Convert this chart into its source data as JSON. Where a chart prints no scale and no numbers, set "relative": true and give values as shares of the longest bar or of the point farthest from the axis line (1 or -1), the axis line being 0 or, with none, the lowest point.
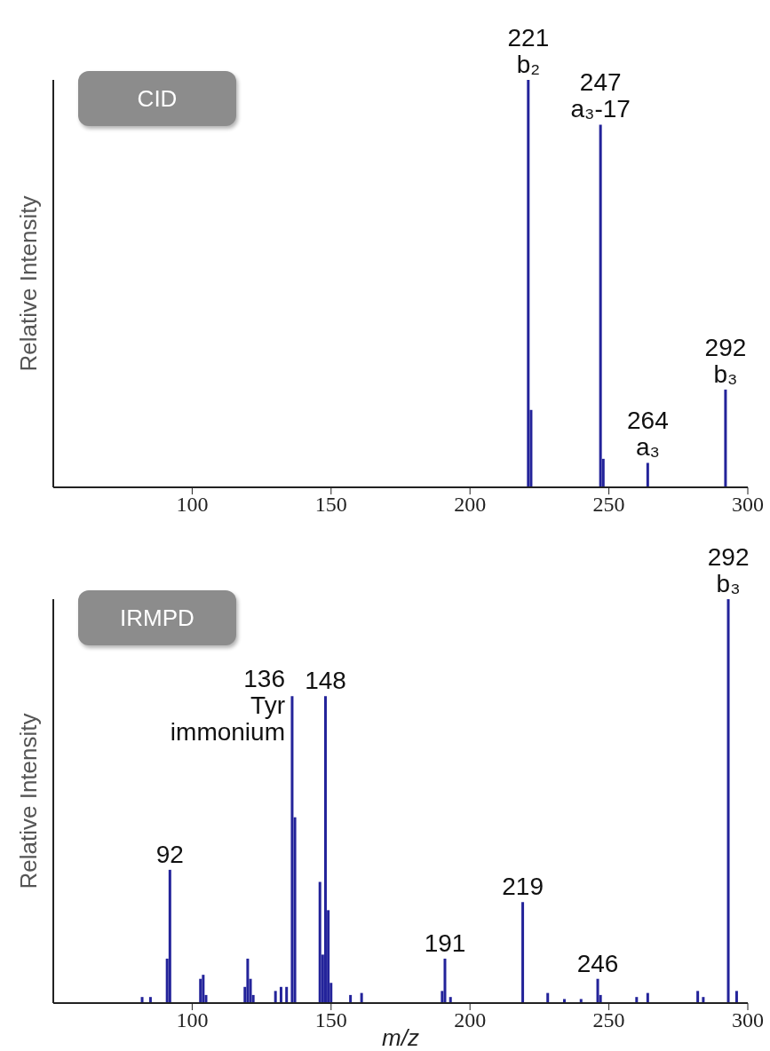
{
  "chart_data": [
    {
      "type": "bar",
      "title": "CID",
      "ylabel": "Relative Intensity",
      "relative": true,
      "tick_labels": "x",
      "xlim": [
        50,
        300
      ],
      "xticks": [
        100,
        150,
        200,
        250,
        300
      ],
      "x": [
        221,
        222,
        247,
        248,
        264,
        292
      ],
      "values": [
        1,
        0.19,
        0.89,
        0.07,
        0.06,
        0.24
      ],
      "color": "#23239a",
      "annotations": [
        {
          "text": "221\nb₂",
          "x": 221,
          "y": 1
        },
        {
          "text": "247\na₃-17",
          "x": 247,
          "y": 0.89
        },
        {
          "text": "264\na₃",
          "x": 264,
          "y": 0.06
        },
        {
          "text": "292\nb₃",
          "x": 292,
          "y": 0.24
        }
      ]
    },
    {
      "type": "bar",
      "title": "IRMPD",
      "ylabel": "Relative Intensity",
      "xlabel": "m/z",
      "relative": true,
      "tick_labels": "x",
      "xlim": [
        50,
        300
      ],
      "xticks": [
        100,
        150,
        200,
        250,
        300
      ],
      "x": [
        82,
        85,
        91,
        92,
        103,
        104,
        105,
        119,
        120,
        121,
        122,
        130,
        132,
        134,
        136,
        137,
        146,
        147,
        148,
        149,
        150,
        157,
        161,
        190,
        191,
        193,
        219,
        228,
        234,
        240,
        246,
        247,
        260,
        264,
        282,
        284,
        293,
        296
      ],
      "values": [
        0.015,
        0.015,
        0.11,
        0.33,
        0.06,
        0.07,
        0.02,
        0.04,
        0.11,
        0.06,
        0.02,
        0.03,
        0.04,
        0.04,
        0.76,
        0.46,
        0.3,
        0.12,
        0.76,
        0.23,
        0.05,
        0.02,
        0.025,
        0.03,
        0.11,
        0.015,
        0.25,
        0.025,
        0.01,
        0.01,
        0.06,
        0.02,
        0.015,
        0.025,
        0.03,
        0.015,
        1,
        0.03
      ],
      "color": "#23239a",
      "annotations": [
        {
          "text": "92",
          "x": 92,
          "y": 0.33
        },
        {
          "text": "136\nTyr\nimmonium",
          "x": 136,
          "y": 0.76
        },
        {
          "text": "148",
          "x": 148,
          "y": 0.76
        },
        {
          "text": "191",
          "x": 191,
          "y": 0.11
        },
        {
          "text": "219",
          "x": 219,
          "y": 0.25
        },
        {
          "text": "246",
          "x": 246,
          "y": 0.06
        },
        {
          "text": "292\nb₃",
          "x": 293,
          "y": 1
        }
      ]
    }
  ]
}
